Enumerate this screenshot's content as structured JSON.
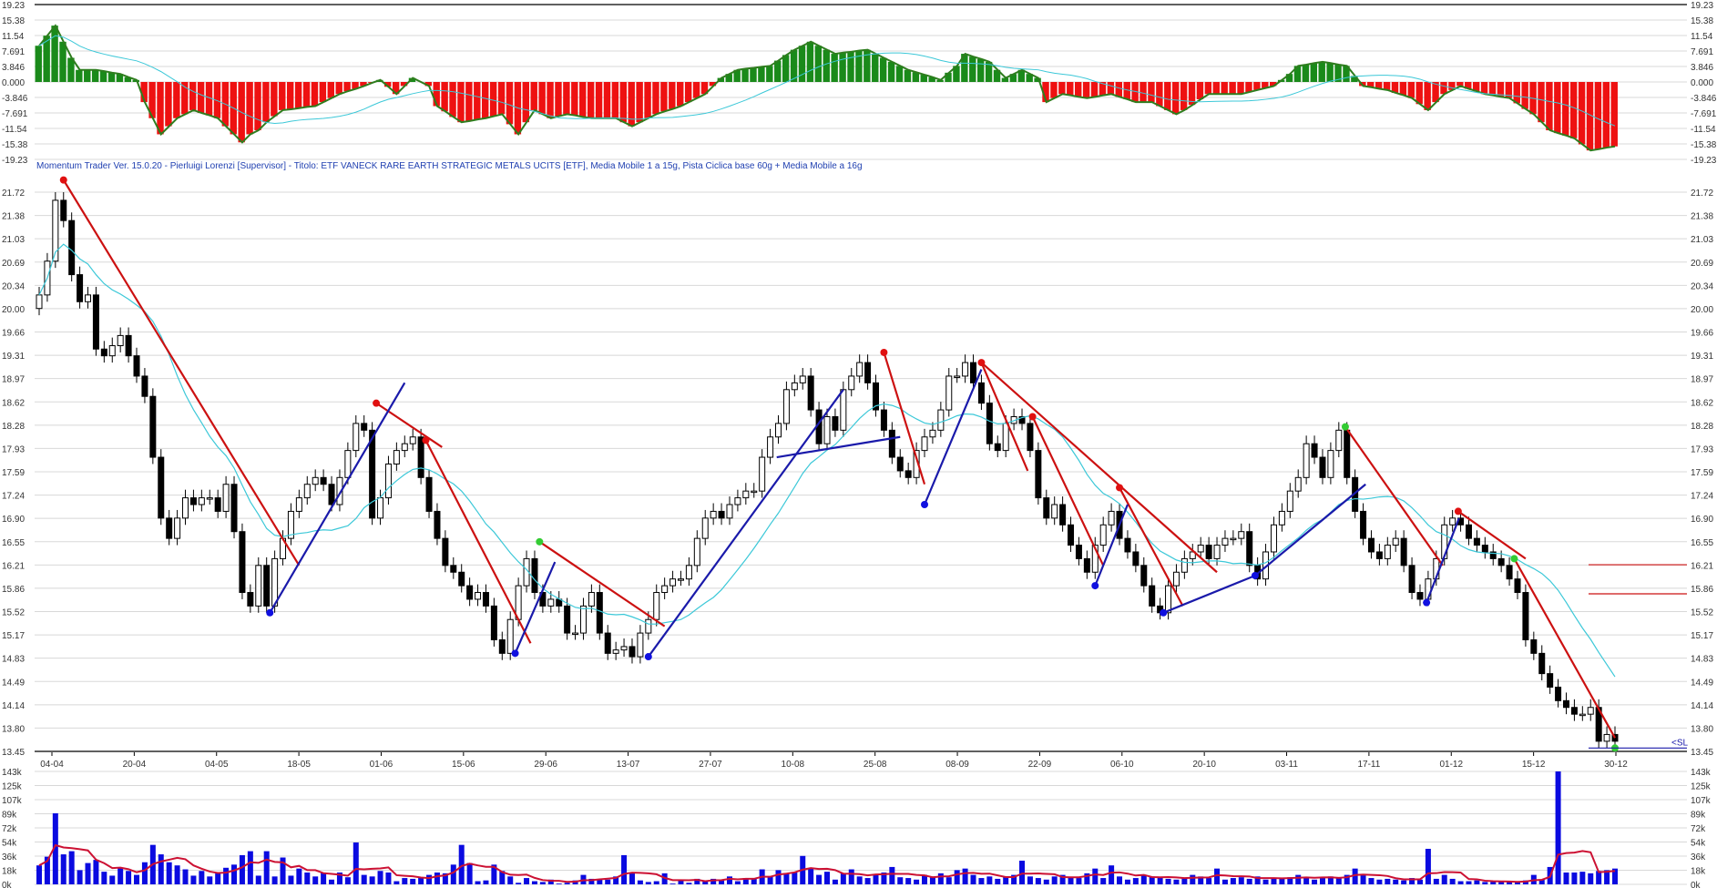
{
  "header": {
    "text": "Momentum Trader   Ver. 15.0.20  -  Pierluigi Lorenzi  [Supervisor] - Titolo: ETF VANECK RARE EARTH STRATEGIC METALS UCITS  [ETF],    Media Mobile 1 a 15g,    Pista Ciclica base 60g + Media Mobile a 16g"
  },
  "colors": {
    "bull_bar": "#1a8a1a",
    "bear_bar": "#ee1111",
    "osc_outline": "#2e7d1e",
    "moving_average": "#3cc8d8",
    "trend_down": "#cc1111",
    "trend_up": "#1a1aaa",
    "volume_bar": "#0a0ae0",
    "volume_average": "#cc1133",
    "stop_loss": "#1a1aaa",
    "grid": "#d8d8d8"
  },
  "chart_data": [
    {
      "type": "bar",
      "panel": "oscillator",
      "ylim": [
        -19.23,
        19.23
      ],
      "yticks": [
        "19.23",
        "15.38",
        "11.54",
        "7.691",
        "3.846",
        "0.000",
        "-3.846",
        "-7.691",
        "-11.54",
        "-15.38",
        "-19.23"
      ],
      "grid": true,
      "values": [
        9,
        11.5,
        14,
        10,
        6,
        3,
        3,
        3,
        2.7,
        2.3,
        2,
        1.2,
        0.5,
        -5,
        -9,
        -13,
        -11,
        -9,
        -8,
        -7,
        -7.7,
        -8.3,
        -9,
        -11,
        -13,
        -15,
        -13,
        -12,
        -10,
        -8.5,
        -7,
        -6.8,
        -6.5,
        -6.2,
        -6,
        -5,
        -4,
        -3,
        -2.3,
        -1.7,
        -1,
        -0.2,
        0.5,
        -1.2,
        -3,
        -1,
        1,
        0,
        -1,
        -6,
        -7.3,
        -8.7,
        -10,
        -9.7,
        -9.3,
        -9,
        -8.5,
        -8,
        -10.5,
        -13,
        -10,
        -7,
        -8,
        -9,
        -8.5,
        -8,
        -8.3,
        -8.7,
        -9,
        -9,
        -9,
        -9,
        -10,
        -11,
        -10,
        -9,
        -8,
        -7.3,
        -6.7,
        -6,
        -5,
        -4,
        -3,
        -1,
        1,
        2,
        3,
        3.3,
        3.5,
        3.8,
        4,
        5.3,
        6.7,
        8,
        9,
        10,
        9,
        8,
        7,
        7.3,
        7.5,
        7.8,
        8,
        7,
        6,
        5,
        4,
        3,
        2.4,
        1.8,
        1.2,
        0.5,
        2.3,
        4,
        7,
        6.3,
        5.7,
        5,
        3,
        1,
        2,
        3,
        2,
        1,
        -5,
        -4,
        -3,
        -3.3,
        -3.7,
        -4,
        -3.7,
        -3.3,
        -3,
        -3.7,
        -4.3,
        -5,
        -5,
        -5,
        -6,
        -7,
        -8,
        -7,
        -5.7,
        -4.3,
        -3,
        -3,
        -3,
        -3,
        -3,
        -2.5,
        -2,
        -1.5,
        -1,
        0.5,
        2,
        4,
        4.3,
        4.7,
        5,
        4.7,
        4.3,
        4,
        1.5,
        -1,
        -1.3,
        -1.7,
        -2,
        -2.7,
        -3.3,
        -4,
        -5.5,
        -7,
        -5,
        -3,
        -2,
        -1,
        -1.7,
        -2.3,
        -3,
        -3.3,
        -3.7,
        -4,
        -5.3,
        -6.7,
        -8,
        -10,
        -12,
        -12.7,
        -13.3,
        -14,
        -15.5,
        -17,
        -16.7,
        -16.3,
        -16
      ],
      "average_period": 16
    },
    {
      "type": "candlestick",
      "panel": "price",
      "ylim": [
        13.45,
        22.0
      ],
      "yticks": [
        "21.72",
        "21.38",
        "21.03",
        "20.69",
        "20.34",
        "20.00",
        "19.66",
        "19.31",
        "18.97",
        "18.62",
        "18.28",
        "17.93",
        "17.59",
        "17.24",
        "16.90",
        "16.55",
        "16.21",
        "15.86",
        "15.52",
        "15.17",
        "14.83",
        "14.49",
        "14.14",
        "13.80",
        "13.45"
      ],
      "xticks": [
        "04-04",
        "20-04",
        "04-05",
        "18-05",
        "01-06",
        "15-06",
        "29-06",
        "13-07",
        "27-07",
        "10-08",
        "25-08",
        "08-09",
        "22-09",
        "06-10",
        "20-10",
        "03-11",
        "17-11",
        "01-12",
        "15-12",
        "30-12"
      ],
      "grid": true,
      "close": [
        20.2,
        20.7,
        21.6,
        21.3,
        20.5,
        20.1,
        20.2,
        19.4,
        19.3,
        19.45,
        19.6,
        19.3,
        19.0,
        18.7,
        17.8,
        16.9,
        16.6,
        16.9,
        17.2,
        17.1,
        17.2,
        17.2,
        17.0,
        17.4,
        16.7,
        15.8,
        15.6,
        16.2,
        15.6,
        16.3,
        16.6,
        17.0,
        17.2,
        17.4,
        17.5,
        17.4,
        17.1,
        17.5,
        17.9,
        18.3,
        18.2,
        16.9,
        17.2,
        17.7,
        17.9,
        18.0,
        18.1,
        17.5,
        17.0,
        16.6,
        16.2,
        16.1,
        15.9,
        15.7,
        15.8,
        15.6,
        15.1,
        14.9,
        15.4,
        15.9,
        16.3,
        15.8,
        15.6,
        15.7,
        15.6,
        15.2,
        15.2,
        15.6,
        15.8,
        15.2,
        14.9,
        14.95,
        15.0,
        14.85,
        15.2,
        15.4,
        15.8,
        15.9,
        16.0,
        16.0,
        16.2,
        16.6,
        16.9,
        17.0,
        16.9,
        17.1,
        17.2,
        17.3,
        17.3,
        17.8,
        18.1,
        18.3,
        18.8,
        18.9,
        19.0,
        18.5,
        18.0,
        18.4,
        18.2,
        18.8,
        19.0,
        19.2,
        18.9,
        18.5,
        18.2,
        17.8,
        17.6,
        17.5,
        17.9,
        18.1,
        18.2,
        18.5,
        19.0,
        19.0,
        19.2,
        18.9,
        18.6,
        18.0,
        17.9,
        18.3,
        18.4,
        18.3,
        17.9,
        17.2,
        16.9,
        17.1,
        16.8,
        16.5,
        16.3,
        16.1,
        16.5,
        16.8,
        17.0,
        16.6,
        16.4,
        16.2,
        15.9,
        15.6,
        15.5,
        15.9,
        16.1,
        16.3,
        16.4,
        16.5,
        16.3,
        16.5,
        16.6,
        16.6,
        16.7,
        16.2,
        16.0,
        16.4,
        16.8,
        17.0,
        17.3,
        17.5,
        18.0,
        17.8,
        17.5,
        17.9,
        18.2,
        17.5,
        17.0,
        16.6,
        16.4,
        16.3,
        16.5,
        16.6,
        16.2,
        15.8,
        15.7,
        16.0,
        16.3,
        16.8,
        16.9,
        16.8,
        16.6,
        16.5,
        16.4,
        16.3,
        16.2,
        16.0,
        15.8,
        15.1,
        14.9,
        14.6,
        14.4,
        14.2,
        14.1,
        14.0,
        14.0,
        14.1,
        13.6,
        13.7,
        13.6
      ],
      "first_open": 20.0,
      "moving_average_period": 15,
      "trendlines_down": [
        [
          3,
          21.9,
          32,
          16.2
        ],
        [
          41.5,
          18.6,
          49.6,
          17.95
        ],
        [
          47.6,
          18.05,
          60.5,
          15.05
        ],
        [
          61.6,
          16.55,
          77,
          15.3
        ],
        [
          104,
          19.35,
          109,
          17.4
        ],
        [
          116,
          19.2,
          145,
          16.1
        ],
        [
          116,
          19.2,
          121.7,
          17.6
        ],
        [
          122.3,
          18.4,
          131,
          16.2
        ],
        [
          133,
          17.35,
          140.8,
          15.6
        ],
        [
          160.8,
          18.25,
          172.8,
          16.2
        ],
        [
          174.7,
          17.0,
          183,
          16.3
        ],
        [
          181.6,
          16.3,
          194,
          13.65
        ]
      ],
      "trendlines_up": [
        [
          28.4,
          15.5,
          45,
          18.9
        ],
        [
          58.6,
          14.9,
          63.5,
          16.25
        ],
        [
          75,
          14.85,
          99,
          18.8
        ],
        [
          90.8,
          17.8,
          106,
          18.1
        ],
        [
          109,
          17.1,
          116,
          19.1
        ],
        [
          130,
          15.9,
          134,
          17.1
        ],
        [
          138.4,
          15.5,
          149.7,
          16.05
        ],
        [
          149.7,
          16.05,
          163.3,
          17.4
        ],
        [
          170.8,
          15.65,
          174.8,
          16.9
        ]
      ],
      "markers_top": [
        [
          3,
          21.9
        ],
        [
          41.5,
          18.6
        ],
        [
          47.6,
          18.05
        ],
        [
          104,
          19.35
        ],
        [
          116,
          19.2
        ],
        [
          122.3,
          18.4
        ],
        [
          133,
          17.35
        ],
        [
          174.7,
          17.0
        ]
      ],
      "markers_bottom": [
        [
          28.4,
          15.5
        ],
        [
          58.6,
          14.9
        ],
        [
          75,
          14.85
        ],
        [
          109,
          17.1
        ],
        [
          130,
          15.9
        ],
        [
          138.4,
          15.5
        ],
        [
          149.7,
          16.05
        ],
        [
          170.8,
          15.65
        ]
      ],
      "markers_green": [
        [
          61.6,
          16.55
        ],
        [
          160.8,
          18.25
        ],
        [
          181.6,
          16.3
        ],
        [
          194,
          13.5
        ]
      ],
      "levels": [
        16.21,
        15.78
      ],
      "stop_loss": {
        "value": 13.5,
        "label": "<SL"
      }
    },
    {
      "type": "bar",
      "panel": "volume",
      "ylim": [
        0,
        143
      ],
      "yticks": [
        "143k",
        "125k",
        "107k",
        "89k",
        "72k",
        "54k",
        "36k",
        "18k",
        "0k"
      ],
      "grid": true,
      "values": [
        24,
        35,
        90,
        38,
        42,
        18,
        27,
        31,
        16,
        11,
        21,
        17,
        12,
        28,
        50,
        38,
        28,
        24,
        19,
        11,
        17,
        10,
        15,
        21,
        25,
        37,
        42,
        11,
        42,
        10,
        34,
        11,
        20,
        15,
        10,
        15,
        6,
        15,
        9,
        53,
        12,
        10,
        17,
        15,
        4,
        8,
        7,
        9,
        12,
        15,
        14,
        25,
        50,
        27,
        4,
        5,
        25,
        17,
        10,
        2,
        8,
        4,
        3,
        6,
        1,
        2,
        5,
        12,
        7,
        6,
        6,
        10,
        37,
        15,
        5,
        3,
        4,
        14,
        1,
        5,
        2,
        7,
        5,
        7,
        6,
        10,
        4,
        8,
        7,
        19,
        10,
        18,
        14,
        15,
        36,
        20,
        12,
        16,
        6,
        14,
        19,
        10,
        8,
        12,
        15,
        22,
        9,
        8,
        6,
        12,
        10,
        14,
        9,
        18,
        20,
        12,
        8,
        10,
        7,
        9,
        12,
        30,
        10,
        8,
        6,
        10,
        12,
        9,
        8,
        14,
        20,
        8,
        24,
        10,
        6,
        8,
        12,
        10,
        9,
        7,
        6,
        8,
        12,
        10,
        8,
        20,
        6,
        8,
        9,
        7,
        10,
        6,
        8,
        7,
        9,
        12,
        8,
        6,
        9,
        10,
        8,
        12,
        20,
        12,
        8,
        6,
        7,
        6,
        5,
        8,
        6,
        45,
        7,
        12,
        7,
        4,
        4,
        5,
        3,
        4,
        3,
        3,
        3,
        5,
        12,
        6,
        22,
        143,
        15,
        15,
        16,
        14,
        17,
        18,
        20,
        12
      ],
      "average_period": 10
    }
  ]
}
